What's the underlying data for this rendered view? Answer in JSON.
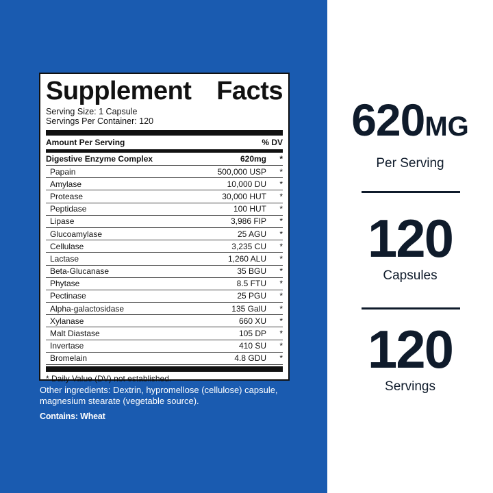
{
  "facts": {
    "title_word1": "Supplement",
    "title_word2": "Facts",
    "serving_size": "Serving Size: 1 Capsule",
    "servings_per_container": "Servings Per Container: 120",
    "amount_header": "Amount Per Serving",
    "dv_header": "% DV",
    "main": {
      "name": "Digestive Enzyme Complex",
      "amount": "620mg",
      "dv": "*"
    },
    "items": [
      {
        "name": "Papain",
        "amount": "500,000 USP",
        "dv": "*"
      },
      {
        "name": "Amylase",
        "amount": "10,000 DU",
        "dv": "*"
      },
      {
        "name": "Protease",
        "amount": "30,000 HUT",
        "dv": "*"
      },
      {
        "name": "Peptidase",
        "amount": "100 HUT",
        "dv": "*"
      },
      {
        "name": "Lipase",
        "amount": "3,986 FIP",
        "dv": "*"
      },
      {
        "name": "Glucoamylase",
        "amount": "25 AGU",
        "dv": "*"
      },
      {
        "name": "Cellulase",
        "amount": "3,235 CU",
        "dv": "*"
      },
      {
        "name": "Lactase",
        "amount": "1,260 ALU",
        "dv": "*"
      },
      {
        "name": "Beta-Glucanase",
        "amount": "35 BGU",
        "dv": "*"
      },
      {
        "name": "Phytase",
        "amount": "8.5 FTU",
        "dv": "*"
      },
      {
        "name": "Pectinase",
        "amount": "25 PGU",
        "dv": "*"
      },
      {
        "name": "Alpha-galactosidase",
        "amount": "135  GalU",
        "dv": "*"
      },
      {
        "name": "Xylanase",
        "amount": "660 XU",
        "dv": "*"
      },
      {
        "name": "Malt Diastase",
        "amount": "105 DP",
        "dv": "*"
      },
      {
        "name": "Invertase",
        "amount": "410 SU",
        "dv": "*"
      },
      {
        "name": "Bromelain",
        "amount": "4.8 GDU",
        "dv": "*"
      }
    ],
    "footnote": "* Daily Value (DV) not established."
  },
  "other_ingredients": "Other ingredients: Dextrin, hypromellose (cellulose) capsule, magnesium stearate (vegetable source).",
  "contains": "Contains: Wheat",
  "stats": {
    "dose_value": "620",
    "dose_unit": "MG",
    "dose_label": "Per Serving",
    "capsules_value": "120",
    "capsules_label": "Capsules",
    "servings_value": "120",
    "servings_label": "Servings"
  },
  "colors": {
    "panel_blue": "#1a5bb0",
    "text_dark": "#0f1b2b"
  }
}
